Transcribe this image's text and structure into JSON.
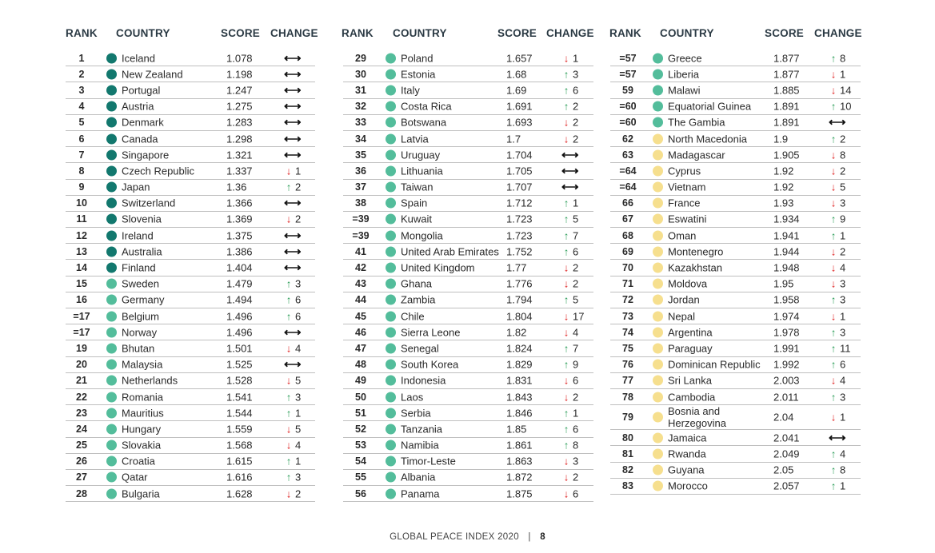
{
  "headers": {
    "rank": "RANK",
    "country": "COUNTRY",
    "score": "SCORE",
    "change": "CHANGE"
  },
  "colors": {
    "dark_teal": "#12786e",
    "light_teal": "#53bd9b",
    "pale_yellow": "#f6df8e",
    "up": "#2e9e5b",
    "down": "#e02424"
  },
  "columns": [
    {
      "rows": [
        {
          "rank": "1",
          "country": "Iceland",
          "score": "1.078",
          "dir": "same",
          "change": "",
          "tier": "dark"
        },
        {
          "rank": "2",
          "country": "New Zealand",
          "score": "1.198",
          "dir": "same",
          "change": "",
          "tier": "dark"
        },
        {
          "rank": "3",
          "country": "Portugal",
          "score": "1.247",
          "dir": "same",
          "change": "",
          "tier": "dark"
        },
        {
          "rank": "4",
          "country": "Austria",
          "score": "1.275",
          "dir": "same",
          "change": "",
          "tier": "dark"
        },
        {
          "rank": "5",
          "country": "Denmark",
          "score": "1.283",
          "dir": "same",
          "change": "",
          "tier": "dark"
        },
        {
          "rank": "6",
          "country": "Canada",
          "score": "1.298",
          "dir": "same",
          "change": "",
          "tier": "dark"
        },
        {
          "rank": "7",
          "country": "Singapore",
          "score": "1.321",
          "dir": "same",
          "change": "",
          "tier": "dark"
        },
        {
          "rank": "8",
          "country": "Czech Republic",
          "score": "1.337",
          "dir": "down",
          "change": "1",
          "tier": "dark"
        },
        {
          "rank": "9",
          "country": "Japan",
          "score": "1.36",
          "dir": "up",
          "change": "2",
          "tier": "dark"
        },
        {
          "rank": "10",
          "country": "Switzerland",
          "score": "1.366",
          "dir": "same",
          "change": "",
          "tier": "dark"
        },
        {
          "rank": "11",
          "country": "Slovenia",
          "score": "1.369",
          "dir": "down",
          "change": "2",
          "tier": "dark"
        },
        {
          "rank": "12",
          "country": "Ireland",
          "score": "1.375",
          "dir": "same",
          "change": "",
          "tier": "dark"
        },
        {
          "rank": "13",
          "country": "Australia",
          "score": "1.386",
          "dir": "same",
          "change": "",
          "tier": "dark"
        },
        {
          "rank": "14",
          "country": "Finland",
          "score": "1.404",
          "dir": "same",
          "change": "",
          "tier": "dark"
        },
        {
          "rank": "15",
          "country": "Sweden",
          "score": "1.479",
          "dir": "up",
          "change": "3",
          "tier": "light"
        },
        {
          "rank": "16",
          "country": "Germany",
          "score": "1.494",
          "dir": "up",
          "change": "6",
          "tier": "light"
        },
        {
          "rank": "=17",
          "country": "Belgium",
          "score": "1.496",
          "dir": "up",
          "change": "6",
          "tier": "light"
        },
        {
          "rank": "=17",
          "country": "Norway",
          "score": "1.496",
          "dir": "same",
          "change": "",
          "tier": "light"
        },
        {
          "rank": "19",
          "country": "Bhutan",
          "score": "1.501",
          "dir": "down",
          "change": "4",
          "tier": "light"
        },
        {
          "rank": "20",
          "country": "Malaysia",
          "score": "1.525",
          "dir": "same",
          "change": "",
          "tier": "light"
        },
        {
          "rank": "21",
          "country": "Netherlands",
          "score": "1.528",
          "dir": "down",
          "change": "5",
          "tier": "light"
        },
        {
          "rank": "22",
          "country": "Romania",
          "score": "1.541",
          "dir": "up",
          "change": "3",
          "tier": "light"
        },
        {
          "rank": "23",
          "country": "Mauritius",
          "score": "1.544",
          "dir": "up",
          "change": "1",
          "tier": "light"
        },
        {
          "rank": "24",
          "country": "Hungary",
          "score": "1.559",
          "dir": "down",
          "change": "5",
          "tier": "light"
        },
        {
          "rank": "25",
          "country": "Slovakia",
          "score": "1.568",
          "dir": "down",
          "change": "4",
          "tier": "light"
        },
        {
          "rank": "26",
          "country": "Croatia",
          "score": "1.615",
          "dir": "up",
          "change": "1",
          "tier": "light"
        },
        {
          "rank": "27",
          "country": "Qatar",
          "score": "1.616",
          "dir": "up",
          "change": "3",
          "tier": "light"
        },
        {
          "rank": "28",
          "country": "Bulgaria",
          "score": "1.628",
          "dir": "down",
          "change": "2",
          "tier": "light"
        }
      ]
    },
    {
      "rows": [
        {
          "rank": "29",
          "country": "Poland",
          "score": "1.657",
          "dir": "down",
          "change": "1",
          "tier": "light"
        },
        {
          "rank": "30",
          "country": "Estonia",
          "score": "1.68",
          "dir": "up",
          "change": "3",
          "tier": "light"
        },
        {
          "rank": "31",
          "country": "Italy",
          "score": "1.69",
          "dir": "up",
          "change": "6",
          "tier": "light"
        },
        {
          "rank": "32",
          "country": "Costa Rica",
          "score": "1.691",
          "dir": "up",
          "change": "2",
          "tier": "light"
        },
        {
          "rank": "33",
          "country": "Botswana",
          "score": "1.693",
          "dir": "down",
          "change": "2",
          "tier": "light"
        },
        {
          "rank": "34",
          "country": "Latvia",
          "score": "1.7",
          "dir": "down",
          "change": "2",
          "tier": "light"
        },
        {
          "rank": "35",
          "country": "Uruguay",
          "score": "1.704",
          "dir": "same",
          "change": "",
          "tier": "light"
        },
        {
          "rank": "36",
          "country": "Lithuania",
          "score": "1.705",
          "dir": "same",
          "change": "",
          "tier": "light"
        },
        {
          "rank": "37",
          "country": "Taiwan",
          "score": "1.707",
          "dir": "same",
          "change": "",
          "tier": "light"
        },
        {
          "rank": "38",
          "country": "Spain",
          "score": "1.712",
          "dir": "up",
          "change": "1",
          "tier": "light"
        },
        {
          "rank": "=39",
          "country": "Kuwait",
          "score": "1.723",
          "dir": "up",
          "change": "5",
          "tier": "light"
        },
        {
          "rank": "=39",
          "country": "Mongolia",
          "score": "1.723",
          "dir": "up",
          "change": "7",
          "tier": "light"
        },
        {
          "rank": "41",
          "country": "United Arab Emirates",
          "score": "1.752",
          "dir": "up",
          "change": "6",
          "tier": "light"
        },
        {
          "rank": "42",
          "country": "United Kingdom",
          "score": "1.77",
          "dir": "down",
          "change": "2",
          "tier": "light"
        },
        {
          "rank": "43",
          "country": "Ghana",
          "score": "1.776",
          "dir": "down",
          "change": "2",
          "tier": "light"
        },
        {
          "rank": "44",
          "country": "Zambia",
          "score": "1.794",
          "dir": "up",
          "change": "5",
          "tier": "light"
        },
        {
          "rank": "45",
          "country": "Chile",
          "score": "1.804",
          "dir": "down",
          "change": "17",
          "tier": "light"
        },
        {
          "rank": "46",
          "country": "Sierra Leone",
          "score": "1.82",
          "dir": "down",
          "change": "4",
          "tier": "light"
        },
        {
          "rank": "47",
          "country": "Senegal",
          "score": "1.824",
          "dir": "up",
          "change": "7",
          "tier": "light"
        },
        {
          "rank": "48",
          "country": "South Korea",
          "score": "1.829",
          "dir": "up",
          "change": "9",
          "tier": "light"
        },
        {
          "rank": "49",
          "country": "Indonesia",
          "score": "1.831",
          "dir": "down",
          "change": "6",
          "tier": "light"
        },
        {
          "rank": "50",
          "country": "Laos",
          "score": "1.843",
          "dir": "down",
          "change": "2",
          "tier": "light"
        },
        {
          "rank": "51",
          "country": "Serbia",
          "score": "1.846",
          "dir": "up",
          "change": "1",
          "tier": "light"
        },
        {
          "rank": "52",
          "country": "Tanzania",
          "score": "1.85",
          "dir": "up",
          "change": "6",
          "tier": "light"
        },
        {
          "rank": "53",
          "country": "Namibia",
          "score": "1.861",
          "dir": "up",
          "change": "8",
          "tier": "light"
        },
        {
          "rank": "54",
          "country": "Timor-Leste",
          "score": "1.863",
          "dir": "down",
          "change": "3",
          "tier": "light"
        },
        {
          "rank": "55",
          "country": "Albania",
          "score": "1.872",
          "dir": "down",
          "change": "2",
          "tier": "light"
        },
        {
          "rank": "56",
          "country": "Panama",
          "score": "1.875",
          "dir": "down",
          "change": "6",
          "tier": "light"
        }
      ]
    },
    {
      "rows": [
        {
          "rank": "=57",
          "country": "Greece",
          "score": "1.877",
          "dir": "up",
          "change": "8",
          "tier": "light"
        },
        {
          "rank": "=57",
          "country": "Liberia",
          "score": "1.877",
          "dir": "down",
          "change": "1",
          "tier": "light"
        },
        {
          "rank": "59",
          "country": "Malawi",
          "score": "1.885",
          "dir": "down",
          "change": "14",
          "tier": "light"
        },
        {
          "rank": "=60",
          "country": "Equatorial Guinea",
          "score": "1.891",
          "dir": "up",
          "change": "10",
          "tier": "light"
        },
        {
          "rank": "=60",
          "country": "The Gambia",
          "score": "1.891",
          "dir": "same",
          "change": "",
          "tier": "light"
        },
        {
          "rank": "62",
          "country": "North Macedonia",
          "score": "1.9",
          "dir": "up",
          "change": "2",
          "tier": "yellow"
        },
        {
          "rank": "63",
          "country": "Madagascar",
          "score": "1.905",
          "dir": "down",
          "change": "8",
          "tier": "yellow"
        },
        {
          "rank": "=64",
          "country": "Cyprus",
          "score": "1.92",
          "dir": "down",
          "change": "2",
          "tier": "yellow"
        },
        {
          "rank": "=64",
          "country": "Vietnam",
          "score": "1.92",
          "dir": "down",
          "change": "5",
          "tier": "yellow"
        },
        {
          "rank": "66",
          "country": "France",
          "score": "1.93",
          "dir": "down",
          "change": "3",
          "tier": "yellow"
        },
        {
          "rank": "67",
          "country": "Eswatini",
          "score": "1.934",
          "dir": "up",
          "change": "9",
          "tier": "yellow"
        },
        {
          "rank": "68",
          "country": "Oman",
          "score": "1.941",
          "dir": "up",
          "change": "1",
          "tier": "yellow"
        },
        {
          "rank": "69",
          "country": "Montenegro",
          "score": "1.944",
          "dir": "down",
          "change": "2",
          "tier": "yellow"
        },
        {
          "rank": "70",
          "country": "Kazakhstan",
          "score": "1.948",
          "dir": "down",
          "change": "4",
          "tier": "yellow"
        },
        {
          "rank": "71",
          "country": "Moldova",
          "score": "1.95",
          "dir": "down",
          "change": "3",
          "tier": "yellow"
        },
        {
          "rank": "72",
          "country": "Jordan",
          "score": "1.958",
          "dir": "up",
          "change": "3",
          "tier": "yellow"
        },
        {
          "rank": "73",
          "country": "Nepal",
          "score": "1.974",
          "dir": "down",
          "change": "1",
          "tier": "yellow"
        },
        {
          "rank": "74",
          "country": "Argentina",
          "score": "1.978",
          "dir": "up",
          "change": "3",
          "tier": "yellow"
        },
        {
          "rank": "75",
          "country": "Paraguay",
          "score": "1.991",
          "dir": "up",
          "change": "11",
          "tier": "yellow"
        },
        {
          "rank": "76",
          "country": "Dominican Republic",
          "score": "1.992",
          "dir": "up",
          "change": "6",
          "tier": "yellow"
        },
        {
          "rank": "77",
          "country": "Sri Lanka",
          "score": "2.003",
          "dir": "down",
          "change": "4",
          "tier": "yellow"
        },
        {
          "rank": "78",
          "country": "Cambodia",
          "score": "2.011",
          "dir": "up",
          "change": "3",
          "tier": "yellow"
        },
        {
          "rank": "79",
          "country": "Bosnia and Herzegovina",
          "score": "2.04",
          "dir": "down",
          "change": "1",
          "tier": "yellow"
        },
        {
          "rank": "80",
          "country": "Jamaica",
          "score": "2.041",
          "dir": "same",
          "change": "",
          "tier": "yellow"
        },
        {
          "rank": "81",
          "country": "Rwanda",
          "score": "2.049",
          "dir": "up",
          "change": "4",
          "tier": "yellow"
        },
        {
          "rank": "82",
          "country": "Guyana",
          "score": "2.05",
          "dir": "up",
          "change": "8",
          "tier": "yellow"
        },
        {
          "rank": "83",
          "country": "Morocco",
          "score": "2.057",
          "dir": "up",
          "change": "1",
          "tier": "yellow"
        }
      ]
    }
  ],
  "footer": {
    "title": "GLOBAL PEACE INDEX 2020",
    "separator": "|",
    "page": "8"
  }
}
